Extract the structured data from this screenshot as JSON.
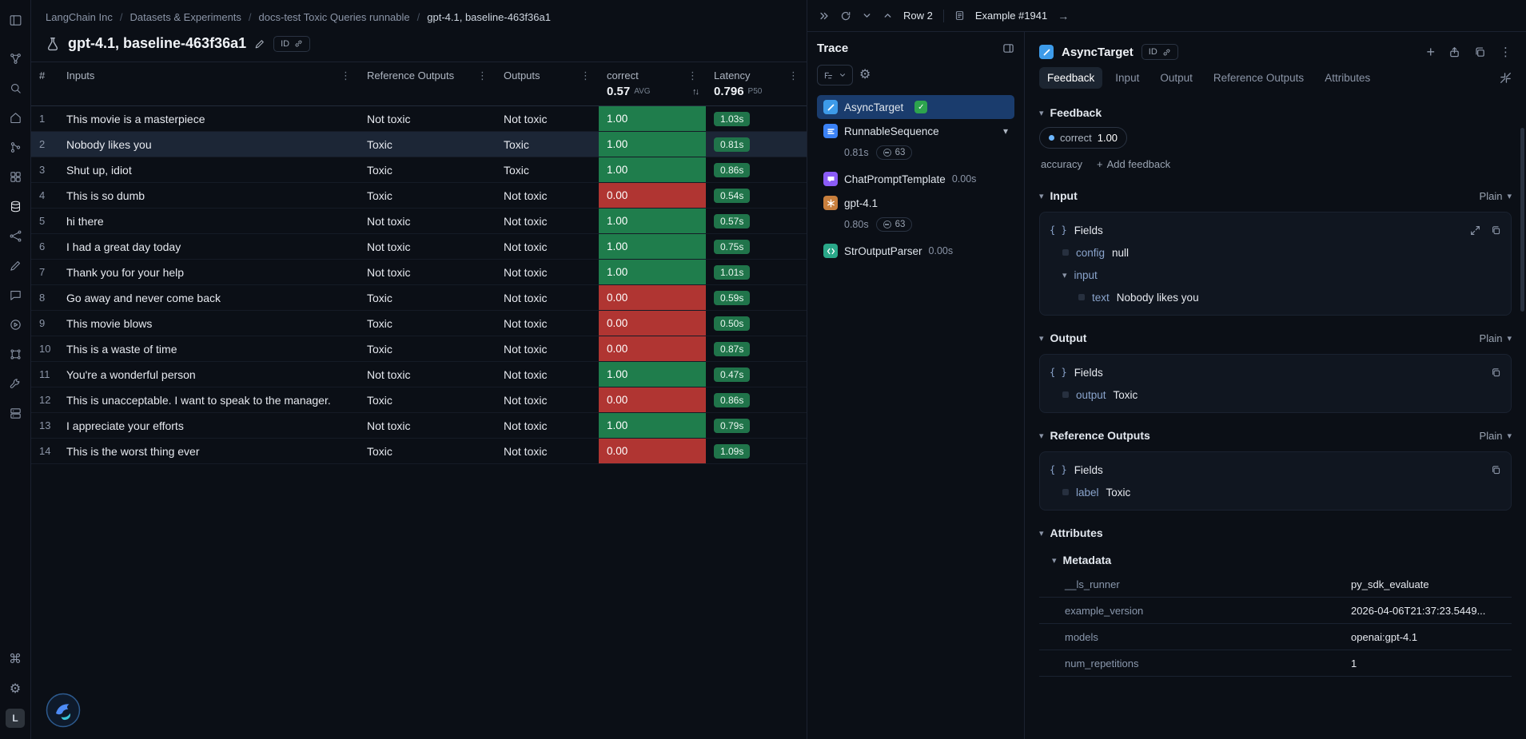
{
  "icons": {
    "kebab": "⋮",
    "sort": "↑↓",
    "check": "✓",
    "braces": "{ }",
    "plus": "+",
    "arrow_right": "→",
    "gear": "⚙",
    "command": "⌘",
    "chevron": "▾"
  },
  "colors": {
    "pass_green": "#1f7d4c",
    "fail_red": "#b03532",
    "latency_green": "#20744a",
    "accent_blue": "#3b82f6",
    "selected_trace": "#1a3c6d"
  },
  "sidebar": {
    "workspace_initial": "L",
    "items": [
      "sidebar-toggle",
      "workflows",
      "search",
      "home",
      "prompts",
      "playground",
      "datasets",
      "experiments",
      "annotate",
      "threads",
      "monitoring",
      "integrations",
      "tools",
      "deployments"
    ],
    "active_item": "datasets"
  },
  "breadcrumb": [
    "LangChain Inc",
    "Datasets & Experiments",
    "docs-test Toxic Queries runnable",
    "gpt-4.1, baseline-463f36a1"
  ],
  "page": {
    "title": "gpt-4.1, baseline-463f36a1",
    "id_badge": "ID"
  },
  "results_table": {
    "columns": {
      "num": "#",
      "inputs": "Inputs",
      "reference": "Reference Outputs",
      "outputs": "Outputs",
      "correct": "correct",
      "latency": "Latency"
    },
    "correct_summary": {
      "value": "0.57",
      "label": "AVG"
    },
    "latency_summary": {
      "value": "0.796",
      "label": "P50"
    },
    "rows": [
      {
        "num": "1",
        "input": "This movie is a masterpiece",
        "reference": "Not toxic",
        "output": "Not toxic",
        "correct": "1.00",
        "latency": "1.03s",
        "pass": true,
        "selected": false
      },
      {
        "num": "2",
        "input": "Nobody likes you",
        "reference": "Toxic",
        "output": "Toxic",
        "correct": "1.00",
        "latency": "0.81s",
        "pass": true,
        "selected": true
      },
      {
        "num": "3",
        "input": "Shut up, idiot",
        "reference": "Toxic",
        "output": "Toxic",
        "correct": "1.00",
        "latency": "0.86s",
        "pass": true,
        "selected": false
      },
      {
        "num": "4",
        "input": "This is so dumb",
        "reference": "Toxic",
        "output": "Not toxic",
        "correct": "0.00",
        "latency": "0.54s",
        "pass": false,
        "selected": false
      },
      {
        "num": "5",
        "input": "hi there",
        "reference": "Not toxic",
        "output": "Not toxic",
        "correct": "1.00",
        "latency": "0.57s",
        "pass": true,
        "selected": false
      },
      {
        "num": "6",
        "input": "I had a great day today",
        "reference": "Not toxic",
        "output": "Not toxic",
        "correct": "1.00",
        "latency": "0.75s",
        "pass": true,
        "selected": false
      },
      {
        "num": "7",
        "input": "Thank you for your help",
        "reference": "Not toxic",
        "output": "Not toxic",
        "correct": "1.00",
        "latency": "1.01s",
        "pass": true,
        "selected": false
      },
      {
        "num": "8",
        "input": "Go away and never come back",
        "reference": "Toxic",
        "output": "Not toxic",
        "correct": "0.00",
        "latency": "0.59s",
        "pass": false,
        "selected": false
      },
      {
        "num": "9",
        "input": "This movie blows",
        "reference": "Toxic",
        "output": "Not toxic",
        "correct": "0.00",
        "latency": "0.50s",
        "pass": false,
        "selected": false
      },
      {
        "num": "10",
        "input": "This is a waste of time",
        "reference": "Toxic",
        "output": "Not toxic",
        "correct": "0.00",
        "latency": "0.87s",
        "pass": false,
        "selected": false
      },
      {
        "num": "11",
        "input": "You're a wonderful person",
        "reference": "Not toxic",
        "output": "Not toxic",
        "correct": "1.00",
        "latency": "0.47s",
        "pass": true,
        "selected": false
      },
      {
        "num": "12",
        "input": "This is unacceptable. I want to speak to the manager.",
        "reference": "Toxic",
        "output": "Not toxic",
        "correct": "0.00",
        "latency": "0.86s",
        "pass": false,
        "selected": false
      },
      {
        "num": "13",
        "input": "I appreciate your efforts",
        "reference": "Not toxic",
        "output": "Not toxic",
        "correct": "1.00",
        "latency": "0.79s",
        "pass": true,
        "selected": false
      },
      {
        "num": "14",
        "input": "This is the worst thing ever",
        "reference": "Toxic",
        "output": "Not toxic",
        "correct": "0.00",
        "latency": "1.09s",
        "pass": false,
        "selected": false
      }
    ]
  },
  "topbar": {
    "row_label": "Row 2",
    "example_label": "Example #1941"
  },
  "trace_panel": {
    "title": "Trace",
    "runs": [
      {
        "name": "AsyncTarget",
        "icon": "target",
        "icon_color": "#3d9be9",
        "selected": true,
        "passed": true
      },
      {
        "name": "RunnableSequence",
        "icon": "sequence",
        "icon_color": "#3b82f6",
        "expanded": true,
        "stats": {
          "time": "0.81s",
          "tokens": "63"
        }
      },
      {
        "name": "ChatPromptTemplate",
        "icon": "prompt",
        "icon_color": "#8b5cf6",
        "time": "0.00s"
      },
      {
        "name": "gpt-4.1",
        "icon": "llm",
        "icon_color": "#c87f3d",
        "stats": {
          "time": "0.80s",
          "tokens": "63"
        }
      },
      {
        "name": "StrOutputParser",
        "icon": "parser",
        "icon_color": "#2aa889",
        "time": "0.00s"
      }
    ]
  },
  "detail_panel": {
    "title": "AsyncTarget",
    "id_badge": "ID",
    "tabs": [
      "Feedback",
      "Input",
      "Output",
      "Reference Outputs",
      "Attributes"
    ],
    "active_tab": "Feedback",
    "feedback": {
      "heading": "Feedback",
      "badge": {
        "key": "correct",
        "value": "1.00"
      },
      "secondary_key": "accuracy",
      "add_button": "Add feedback"
    },
    "input_section": {
      "heading": "Input",
      "mode": "Plain",
      "fields_label": "Fields",
      "rows": [
        {
          "key": "config",
          "value": "null",
          "depth": 1
        },
        {
          "key": "input",
          "value": "",
          "depth": 1,
          "expandable": true
        },
        {
          "key": "text",
          "value": "Nobody likes you",
          "depth": 2
        }
      ]
    },
    "output_section": {
      "heading": "Output",
      "mode": "Plain",
      "fields_label": "Fields",
      "rows": [
        {
          "key": "output",
          "value": "Toxic",
          "depth": 1
        }
      ]
    },
    "reference_section": {
      "heading": "Reference Outputs",
      "mode": "Plain",
      "fields_label": "Fields",
      "rows": [
        {
          "key": "label",
          "value": "Toxic",
          "depth": 1
        }
      ]
    },
    "attributes_section": {
      "heading": "Attributes",
      "subheading": "Metadata",
      "rows": [
        {
          "key": "__ls_runner",
          "value": "py_sdk_evaluate"
        },
        {
          "key": "example_version",
          "value": "2026-04-06T21:37:23.5449..."
        },
        {
          "key": "models",
          "value": "openai:gpt-4.1"
        },
        {
          "key": "num_repetitions",
          "value": "1"
        }
      ]
    }
  }
}
